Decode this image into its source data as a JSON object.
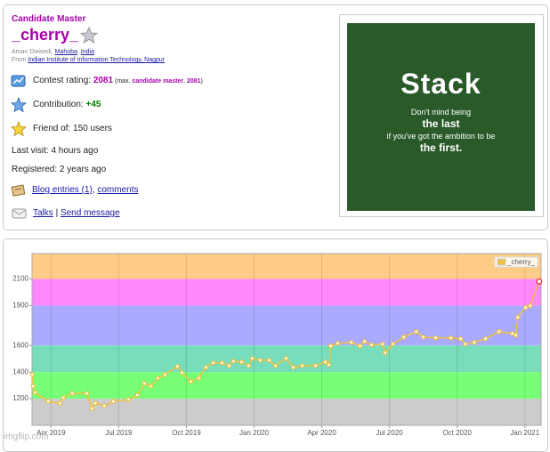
{
  "profile": {
    "rank": "Candidate Master",
    "handle": "_cherry_",
    "location": [
      "Aman Dwivedi, ",
      "Mahoba",
      ", ",
      "India"
    ],
    "organization": [
      "From ",
      "Indian Institute of Information Technology, Nagpur"
    ],
    "rating": [
      "Contest rating: ",
      "2081",
      " (max. ",
      "candidate master",
      ", ",
      "2081",
      ")"
    ],
    "contribution": [
      "Contribution: ",
      "+45"
    ],
    "friends": "Friend of: 150 users",
    "last_visit": "Last visit: 4 hours ago",
    "registered": "Registered: 2 years ago",
    "blog": [
      "Blog entries (1)",
      ", ",
      "comments"
    ],
    "talks": [
      "Talks",
      " | ",
      "Send message"
    ]
  },
  "ad": {
    "brand": "Stack",
    "lines": [
      "Don't mind being",
      "the last",
      "if you've got the ambition to be",
      "the first."
    ]
  },
  "watermark": "imgflip.com",
  "chart_data": {
    "type": "line",
    "xlim": [
      2019.18,
      2021.06
    ],
    "xticks": [
      {
        "value": 2019.25,
        "label": "Apr 2019"
      },
      {
        "value": 2019.5,
        "label": "Jul 2019"
      },
      {
        "value": 2019.75,
        "label": "Oct 2019"
      },
      {
        "value": 2020.0,
        "label": "Jan 2020"
      },
      {
        "value": 2020.25,
        "label": "Apr 2020"
      },
      {
        "value": 2020.5,
        "label": "Jul 2020"
      },
      {
        "value": 2020.75,
        "label": "Oct 2020"
      },
      {
        "value": 2021.0,
        "label": "Jan 2021"
      }
    ],
    "ylim": [
      1000,
      2290
    ],
    "yticks": [
      1200,
      1400,
      1600,
      1900,
      2100
    ],
    "grid": "x",
    "legend": "top-right",
    "bands": [
      {
        "from": 1000,
        "to": 1200,
        "color": "#cccccc"
      },
      {
        "from": 1200,
        "to": 1400,
        "color": "#77ff77"
      },
      {
        "from": 1400,
        "to": 1600,
        "color": "#77ddbb"
      },
      {
        "from": 1600,
        "to": 1900,
        "color": "#aaaaff"
      },
      {
        "from": 1900,
        "to": 2100,
        "color": "#ff88ff"
      },
      {
        "from": 2100,
        "to": 2290,
        "color": "#ffcc88"
      }
    ],
    "last_point_color": "#e03030",
    "series": [
      {
        "name": "_cherry_",
        "color": "#edc240",
        "x": [
          2019.181,
          2019.184,
          2019.191,
          2019.24,
          2019.283,
          2019.296,
          2019.329,
          2019.382,
          2019.401,
          2019.414,
          2019.447,
          2019.48,
          2019.536,
          2019.569,
          2019.595,
          2019.618,
          2019.645,
          2019.671,
          2019.717,
          2019.734,
          2019.766,
          2019.796,
          2019.822,
          2019.849,
          2019.882,
          2019.908,
          2019.924,
          2019.954,
          2019.98,
          2019.993,
          2020.023,
          2020.056,
          2020.079,
          2020.118,
          2020.145,
          2020.178,
          2020.227,
          2020.263,
          2020.276,
          2020.283,
          2020.309,
          2020.359,
          2020.391,
          2020.408,
          2020.434,
          2020.474,
          2020.484,
          2020.513,
          2020.553,
          2020.599,
          2020.625,
          2020.671,
          2020.727,
          2020.763,
          2020.78,
          2020.813,
          2020.855,
          2020.905,
          2020.954,
          2020.967,
          2020.974,
          2021.003,
          2021.02,
          2021.053
        ],
        "values": [
          1381,
          1294,
          1247,
          1180,
          1166,
          1207,
          1240,
          1240,
          1126,
          1166,
          1146,
          1180,
          1193,
          1227,
          1314,
          1294,
          1354,
          1381,
          1442,
          1395,
          1328,
          1354,
          1435,
          1469,
          1469,
          1448,
          1482,
          1475,
          1448,
          1502,
          1489,
          1489,
          1448,
          1502,
          1435,
          1448,
          1448,
          1475,
          1455,
          1596,
          1616,
          1623,
          1596,
          1630,
          1603,
          1610,
          1543,
          1610,
          1663,
          1704,
          1663,
          1657,
          1657,
          1650,
          1610,
          1623,
          1650,
          1704,
          1690,
          1677,
          1811,
          1885,
          1898,
          2081
        ]
      }
    ]
  }
}
